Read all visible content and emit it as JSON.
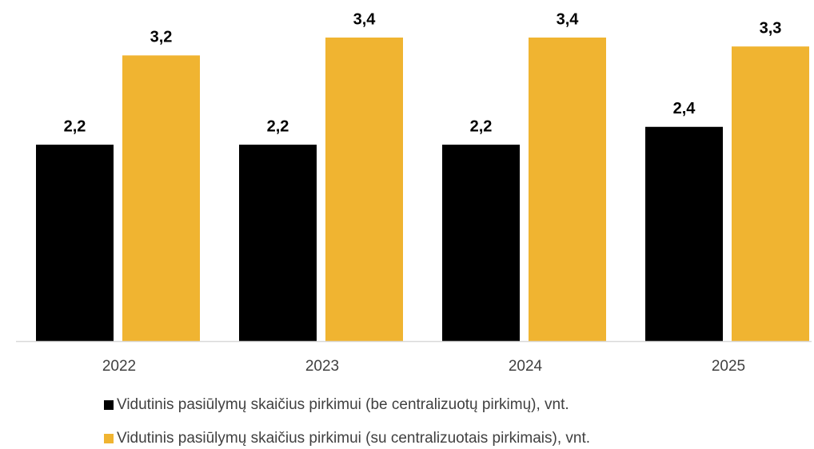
{
  "chart_data": {
    "type": "bar",
    "categories": [
      "2022",
      "2023",
      "2024",
      "2025"
    ],
    "series": [
      {
        "name": "Vidutinis pasiūlymų skaičius pirkimui (be centralizuotų pirkimų), vnt.",
        "color": "#000000",
        "values": [
          2.2,
          2.2,
          2.2,
          2.4
        ],
        "value_labels": [
          "2,2",
          "2,2",
          "2,2",
          "2,4"
        ]
      },
      {
        "name": "Vidutinis pasiūlymų skaičius pirkimui (su centralizuotais pirkimais), vnt.",
        "color": "#f0b431",
        "values": [
          3.2,
          3.4,
          3.4,
          3.3
        ],
        "value_labels": [
          "3,2",
          "3,4",
          "3,4",
          "3,3"
        ]
      }
    ]
  }
}
